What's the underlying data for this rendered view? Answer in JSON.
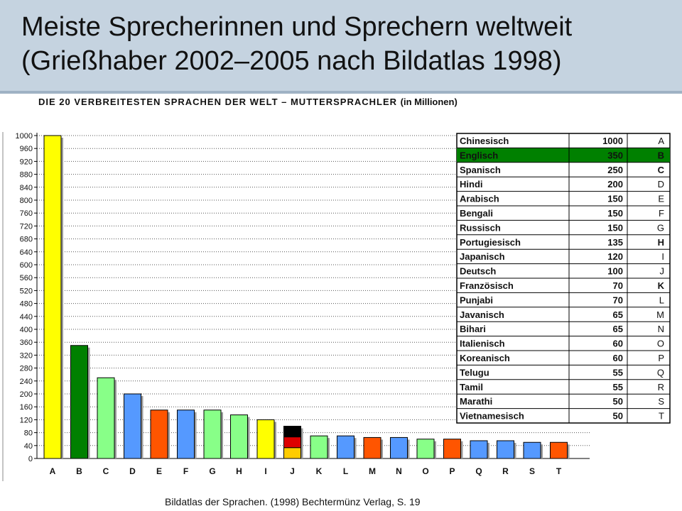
{
  "slide": {
    "title_line1": "Meiste Sprecherinnen und Sprechern weltweit",
    "title_line2": "(Grießhaber 2002–2005 nach Bildatlas 1998)",
    "source": "Bildatlas der Sprachen. (1998) Bechtermünz Verlag, S. 19"
  },
  "colors": {
    "header_bg": "#c5d3e0",
    "yellow": "#ffff00",
    "dark_green": "#008000",
    "light_green": "#88ff88",
    "blue": "#5599ff",
    "orange": "#ff5500",
    "highlight_row": "#008000",
    "black": "#000000",
    "red": "#dd0000",
    "gold": "#ffcc00"
  },
  "chart_data": {
    "type": "bar",
    "title": "DIE 20 VERBREITESTEN SPRACHEN DER WELT – MUTTERSPRACHLER",
    "title_unit": "(in Millionen)",
    "categories": [
      "A",
      "B",
      "C",
      "D",
      "E",
      "F",
      "G",
      "H",
      "I",
      "J",
      "K",
      "L",
      "M",
      "N",
      "O",
      "P",
      "Q",
      "R",
      "S",
      "T"
    ],
    "values": [
      1000,
      350,
      250,
      200,
      150,
      150,
      150,
      135,
      120,
      100,
      70,
      70,
      65,
      65,
      60,
      60,
      55,
      55,
      50,
      50
    ],
    "bar_colors": [
      "yellow",
      "dark_green",
      "light_green",
      "blue",
      "orange",
      "blue",
      "light_green",
      "light_green",
      "yellow",
      "flag",
      "light_green",
      "blue",
      "orange",
      "blue",
      "light_green",
      "orange",
      "blue",
      "blue",
      "blue",
      "orange"
    ],
    "ylim": [
      0,
      1000
    ],
    "yticks": [
      0,
      40,
      80,
      120,
      160,
      200,
      240,
      280,
      320,
      360,
      400,
      440,
      480,
      520,
      560,
      600,
      640,
      680,
      720,
      760,
      800,
      840,
      880,
      920,
      960,
      1000
    ],
    "grid": true,
    "legend_table": [
      {
        "language": "Chinesisch",
        "value": "1000",
        "letter": "A",
        "highlight": false,
        "bold_letter": false
      },
      {
        "language": "Englisch",
        "value": "350",
        "letter": "B",
        "highlight": true,
        "bold_letter": true
      },
      {
        "language": "Spanisch",
        "value": "250",
        "letter": "C",
        "highlight": false,
        "bold_letter": true
      },
      {
        "language": "Hindi",
        "value": "200",
        "letter": "D",
        "highlight": false,
        "bold_letter": false
      },
      {
        "language": "Arabisch",
        "value": "150",
        "letter": "E",
        "highlight": false,
        "bold_letter": false
      },
      {
        "language": "Bengali",
        "value": "150",
        "letter": "F",
        "highlight": false,
        "bold_letter": false
      },
      {
        "language": "Russisch",
        "value": "150",
        "letter": "G",
        "highlight": false,
        "bold_letter": false
      },
      {
        "language": "Portugiesisch",
        "value": "135",
        "letter": "H",
        "highlight": false,
        "bold_letter": true
      },
      {
        "language": "Japanisch",
        "value": "120",
        "letter": "I",
        "highlight": false,
        "bold_letter": false
      },
      {
        "language": "Deutsch",
        "value": "100",
        "letter": "J",
        "highlight": false,
        "bold_letter": false
      },
      {
        "language": "Französisch",
        "value": "70",
        "letter": "K",
        "highlight": false,
        "bold_letter": true
      },
      {
        "language": "Punjabi",
        "value": "70",
        "letter": "L",
        "highlight": false,
        "bold_letter": false
      },
      {
        "language": "Javanisch",
        "value": "65",
        "letter": "M",
        "highlight": false,
        "bold_letter": false
      },
      {
        "language": "Bihari",
        "value": "65",
        "letter": "N",
        "highlight": false,
        "bold_letter": false
      },
      {
        "language": "Italienisch",
        "value": "60",
        "letter": "O",
        "highlight": false,
        "bold_letter": false
      },
      {
        "language": "Koreanisch",
        "value": "60",
        "letter": "P",
        "highlight": false,
        "bold_letter": false
      },
      {
        "language": "Telugu",
        "value": "55",
        "letter": "Q",
        "highlight": false,
        "bold_letter": false
      },
      {
        "language": "Tamil",
        "value": "55",
        "letter": "R",
        "highlight": false,
        "bold_letter": false
      },
      {
        "language": "Marathi",
        "value": "50",
        "letter": "S",
        "highlight": false,
        "bold_letter": false
      },
      {
        "language": "Vietnamesisch",
        "value": "50",
        "letter": "T",
        "highlight": false,
        "bold_letter": false
      }
    ]
  }
}
